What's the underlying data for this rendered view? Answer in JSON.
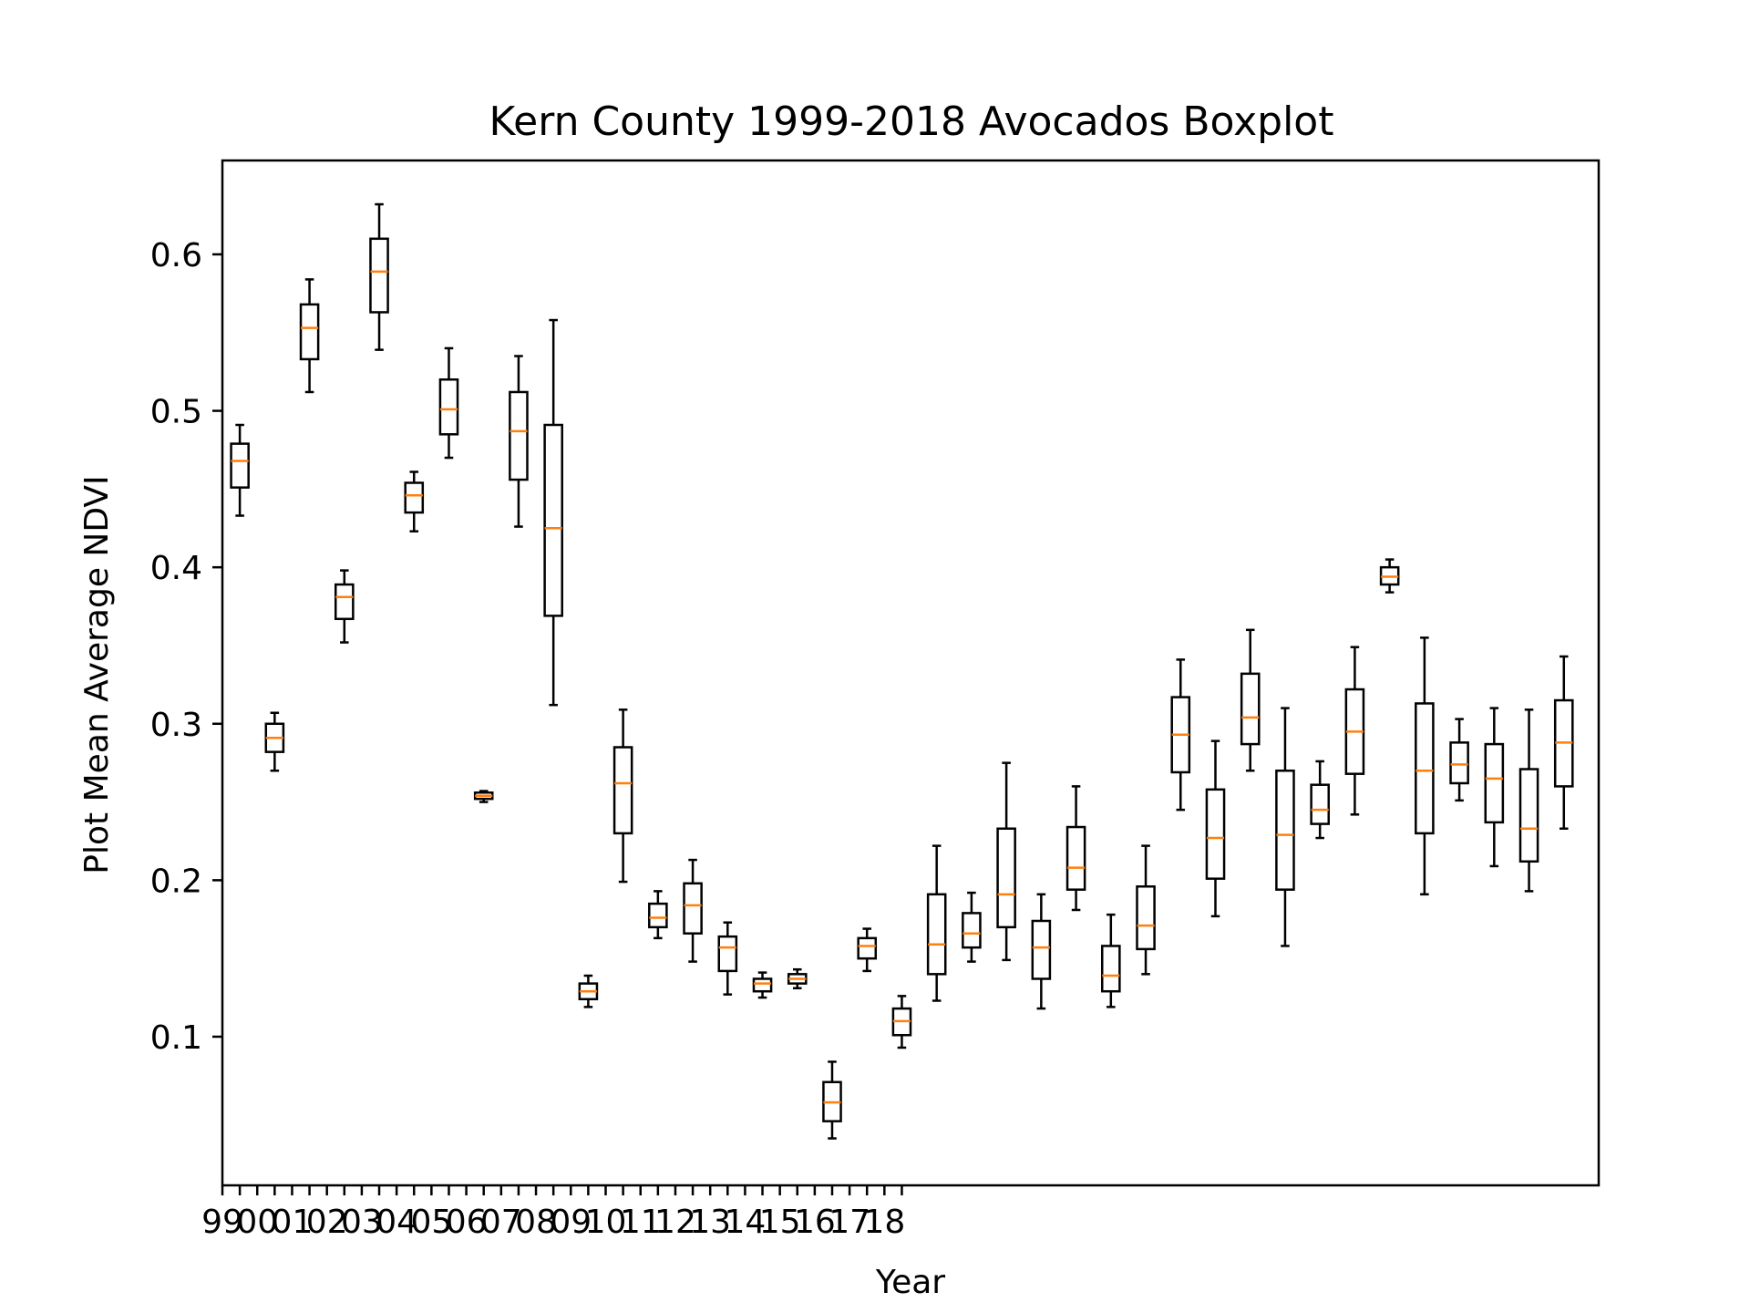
{
  "chart_data": {
    "type": "boxplot",
    "title": "Kern County 1999-2018 Avocados Boxplot",
    "xlabel": "Year",
    "ylabel": "Plot Mean Average NDVI",
    "ylim": [
      0.005,
      0.66
    ],
    "grid": false,
    "median_color": "#ff7f0e",
    "box_color": "#000000",
    "y_ticks": [
      0.1,
      0.2,
      0.3,
      0.4,
      0.5,
      0.6
    ],
    "y_tick_labels": [
      "0.1",
      "0.2",
      "0.3",
      "0.4",
      "0.5",
      "0.6"
    ],
    "x_major_labels": [
      "99",
      "00",
      "01",
      "02",
      "03",
      "04",
      "05",
      "06",
      "07",
      "08",
      "09",
      "10",
      "11",
      "12",
      "13",
      "14",
      "15",
      "16",
      "17",
      "18"
    ],
    "boxes": [
      {
        "whislo": 0.433,
        "q1": 0.451,
        "med": 0.468,
        "q3": 0.479,
        "whishi": 0.491
      },
      {
        "whislo": 0.27,
        "q1": 0.282,
        "med": 0.291,
        "q3": 0.3,
        "whishi": 0.307
      },
      {
        "whislo": 0.512,
        "q1": 0.533,
        "med": 0.553,
        "q3": 0.568,
        "whishi": 0.584
      },
      {
        "whislo": 0.352,
        "q1": 0.367,
        "med": 0.381,
        "q3": 0.389,
        "whishi": 0.398
      },
      {
        "whislo": 0.539,
        "q1": 0.563,
        "med": 0.589,
        "q3": 0.61,
        "whishi": 0.632
      },
      {
        "whislo": 0.423,
        "q1": 0.435,
        "med": 0.446,
        "q3": 0.454,
        "whishi": 0.461
      },
      {
        "whislo": 0.47,
        "q1": 0.485,
        "med": 0.501,
        "q3": 0.52,
        "whishi": 0.54
      },
      {
        "whislo": 0.25,
        "q1": 0.252,
        "med": 0.254,
        "q3": 0.256,
        "whishi": 0.257
      },
      {
        "whislo": 0.426,
        "q1": 0.456,
        "med": 0.487,
        "q3": 0.512,
        "whishi": 0.535
      },
      {
        "whislo": 0.312,
        "q1": 0.369,
        "med": 0.425,
        "q3": 0.491,
        "whishi": 0.558
      },
      {
        "whislo": 0.119,
        "q1": 0.124,
        "med": 0.129,
        "q3": 0.134,
        "whishi": 0.139
      },
      {
        "whislo": 0.199,
        "q1": 0.23,
        "med": 0.262,
        "q3": 0.285,
        "whishi": 0.309
      },
      {
        "whislo": 0.163,
        "q1": 0.17,
        "med": 0.176,
        "q3": 0.185,
        "whishi": 0.193
      },
      {
        "whislo": 0.148,
        "q1": 0.166,
        "med": 0.184,
        "q3": 0.198,
        "whishi": 0.213
      },
      {
        "whislo": 0.127,
        "q1": 0.142,
        "med": 0.157,
        "q3": 0.164,
        "whishi": 0.173
      },
      {
        "whislo": 0.125,
        "q1": 0.129,
        "med": 0.134,
        "q3": 0.137,
        "whishi": 0.141
      },
      {
        "whislo": 0.131,
        "q1": 0.134,
        "med": 0.137,
        "q3": 0.14,
        "whishi": 0.143
      },
      {
        "whislo": 0.035,
        "q1": 0.046,
        "med": 0.058,
        "q3": 0.071,
        "whishi": 0.084
      },
      {
        "whislo": 0.142,
        "q1": 0.15,
        "med": 0.158,
        "q3": 0.163,
        "whishi": 0.169
      },
      {
        "whislo": 0.093,
        "q1": 0.101,
        "med": 0.11,
        "q3": 0.118,
        "whishi": 0.126
      },
      {
        "whislo": 0.123,
        "q1": 0.14,
        "med": 0.159,
        "q3": 0.191,
        "whishi": 0.222
      },
      {
        "whislo": 0.148,
        "q1": 0.157,
        "med": 0.166,
        "q3": 0.179,
        "whishi": 0.192
      },
      {
        "whislo": 0.149,
        "q1": 0.17,
        "med": 0.191,
        "q3": 0.233,
        "whishi": 0.275
      },
      {
        "whislo": 0.118,
        "q1": 0.137,
        "med": 0.157,
        "q3": 0.174,
        "whishi": 0.191
      },
      {
        "whislo": 0.181,
        "q1": 0.194,
        "med": 0.208,
        "q3": 0.234,
        "whishi": 0.26
      },
      {
        "whislo": 0.119,
        "q1": 0.129,
        "med": 0.139,
        "q3": 0.158,
        "whishi": 0.178
      },
      {
        "whislo": 0.14,
        "q1": 0.156,
        "med": 0.171,
        "q3": 0.196,
        "whishi": 0.222
      },
      {
        "whislo": 0.245,
        "q1": 0.269,
        "med": 0.293,
        "q3": 0.317,
        "whishi": 0.341
      },
      {
        "whislo": 0.177,
        "q1": 0.201,
        "med": 0.227,
        "q3": 0.258,
        "whishi": 0.289
      },
      {
        "whislo": 0.27,
        "q1": 0.287,
        "med": 0.304,
        "q3": 0.332,
        "whishi": 0.36
      },
      {
        "whislo": 0.158,
        "q1": 0.194,
        "med": 0.229,
        "q3": 0.27,
        "whishi": 0.31
      },
      {
        "whislo": 0.227,
        "q1": 0.236,
        "med": 0.245,
        "q3": 0.261,
        "whishi": 0.276
      },
      {
        "whislo": 0.242,
        "q1": 0.268,
        "med": 0.295,
        "q3": 0.322,
        "whishi": 0.349
      },
      {
        "whislo": 0.384,
        "q1": 0.389,
        "med": 0.394,
        "q3": 0.4,
        "whishi": 0.405
      },
      {
        "whislo": 0.191,
        "q1": 0.23,
        "med": 0.27,
        "q3": 0.313,
        "whishi": 0.355
      },
      {
        "whislo": 0.251,
        "q1": 0.262,
        "med": 0.274,
        "q3": 0.288,
        "whishi": 0.303
      },
      {
        "whislo": 0.209,
        "q1": 0.237,
        "med": 0.265,
        "q3": 0.287,
        "whishi": 0.31
      },
      {
        "whislo": 0.193,
        "q1": 0.212,
        "med": 0.233,
        "q3": 0.271,
        "whishi": 0.309
      },
      {
        "whislo": 0.233,
        "q1": 0.26,
        "med": 0.288,
        "q3": 0.315,
        "whishi": 0.343
      }
    ]
  }
}
